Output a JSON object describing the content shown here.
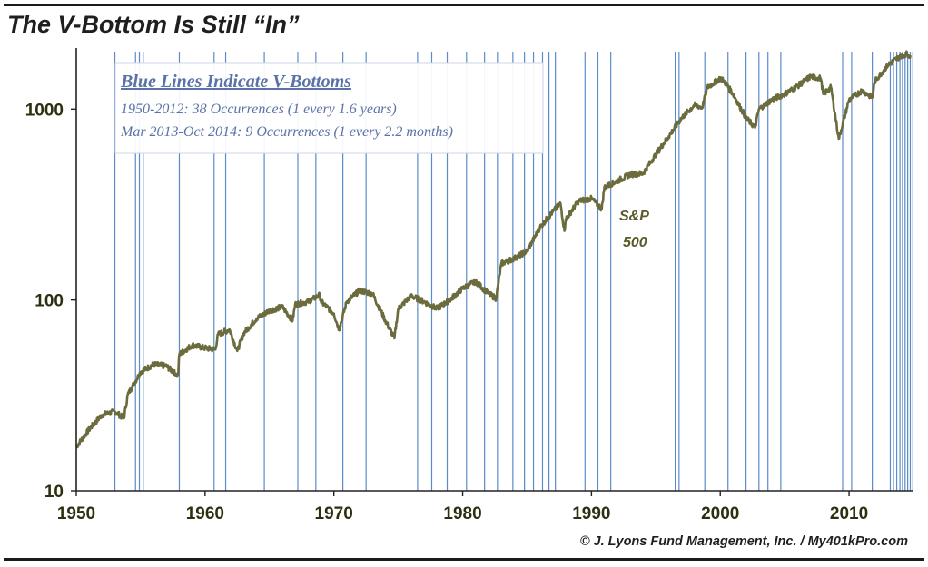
{
  "title": "The V-Bottom Is Still “In”",
  "copyright": "© J. Lyons Fund Management, Inc. / My401kPro.com",
  "colors": {
    "series": "#6b6b3d",
    "vlines": "#5b8bc9",
    "legend_text": "#5a72a8",
    "axis": "#222222"
  },
  "chart_data": {
    "type": "line",
    "title": "The V-Bottom Is Still “In”",
    "yscale": "log",
    "xlim": [
      1950,
      2015
    ],
    "ylim": [
      10,
      2000
    ],
    "x_ticks": [
      1950,
      1960,
      1970,
      1980,
      1990,
      2000,
      2010
    ],
    "x_tick_labels": [
      "1950",
      "1960",
      "1970",
      "1980",
      "1990",
      "2000",
      "2010"
    ],
    "y_ticks": [
      10,
      100,
      1000
    ],
    "y_tick_labels": [
      "10",
      "100",
      "1000"
    ],
    "legend": {
      "title": "Blue Lines Indicate V-Bottoms",
      "lines": [
        "1950-2012:  38 Occurrences (1 every 1.6 years)",
        "Mar 2013-Oct 2014:  9 Occurrences (1 every 2.2 months)"
      ]
    },
    "annotation": {
      "line1": "S&P",
      "line2": "500"
    },
    "series": [
      {
        "name": "S&P 500",
        "x": [
          1950,
          1951,
          1952,
          1953,
          1953.7,
          1954,
          1955,
          1956,
          1957,
          1957.9,
          1958,
          1959,
          1960,
          1960.8,
          1961,
          1961.9,
          1962.5,
          1963,
          1964,
          1965,
          1966,
          1966.8,
          1967,
          1968,
          1968.9,
          1969,
          1970,
          1970.4,
          1971,
          1972,
          1973,
          1974,
          1974.7,
          1975,
          1976,
          1977,
          1978,
          1979,
          1980,
          1981,
          1982,
          1982.6,
          1983,
          1984,
          1985,
          1986,
          1987,
          1987.6,
          1987.9,
          1988,
          1989,
          1990,
          1990.8,
          1991,
          1992,
          1993,
          1994,
          1995,
          1996,
          1997,
          1998,
          1998.6,
          1999,
          2000,
          2000.3,
          2001,
          2002,
          2002.7,
          2003,
          2004,
          2005,
          2006,
          2007,
          2007.8,
          2008,
          2008.6,
          2009.2,
          2010,
          2011,
          2011.8,
          2012,
          2013,
          2014,
          2014.5,
          2014.8
        ],
        "values": [
          17,
          21,
          25,
          26,
          24,
          32,
          42,
          46,
          45,
          40,
          52,
          58,
          56,
          55,
          66,
          70,
          54,
          67,
          80,
          88,
          92,
          78,
          95,
          98,
          106,
          98,
          85,
          70,
          98,
          112,
          108,
          78,
          63,
          90,
          105,
          98,
          90,
          100,
          115,
          125,
          108,
          102,
          155,
          165,
          180,
          240,
          290,
          320,
          230,
          265,
          330,
          340,
          300,
          390,
          420,
          455,
          460,
          580,
          720,
          900,
          1050,
          1020,
          1300,
          1450,
          1400,
          1200,
          900,
          800,
          1000,
          1120,
          1200,
          1320,
          1480,
          1450,
          1200,
          1300,
          700,
          1120,
          1250,
          1150,
          1400,
          1700,
          1900,
          1950,
          1880
        ]
      }
    ],
    "v_bottoms": [
      1953.0,
      1954.6,
      1954.9,
      1955.2,
      1958.0,
      1960.7,
      1961.6,
      1964.6,
      1967.2,
      1968.6,
      1970.7,
      1972.5,
      1976.5,
      1977.6,
      1978.8,
      1980.3,
      1981.7,
      1982.7,
      1983.9,
      1984.8,
      1985.5,
      1986.2,
      1986.7,
      1987.2,
      1989.5,
      1990.5,
      1991.5,
      1996.5,
      1996.8,
      1998.8,
      2000.6,
      2002.0,
      2003.0,
      2003.7,
      2004.7,
      2009.5,
      2010.2,
      2011.8,
      2013.2,
      2013.45,
      2013.7,
      2013.95,
      2014.15,
      2014.35,
      2014.55,
      2014.75,
      2014.95
    ]
  }
}
